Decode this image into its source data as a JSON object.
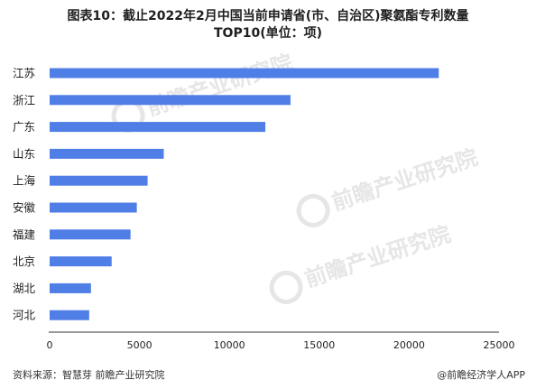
{
  "title_line1": "图表10：截止2022年2月中国当前申请省(市、自治区)聚氨酯专利数量",
  "title_line2": "TOP10(单位：项)",
  "source": "资料来源：智慧芽 前瞻产业研究院",
  "credit": "@前瞻经济学人APP",
  "watermark": "前瞻产业研究院",
  "colors": {
    "bar": "#4f7ee6",
    "axis": "#333333",
    "watermark": "#e6e6e6"
  },
  "chart_data": {
    "type": "bar",
    "orientation": "horizontal",
    "categories": [
      "江苏",
      "浙江",
      "广东",
      "山东",
      "上海",
      "安徽",
      "福建",
      "北京",
      "湖北",
      "河北"
    ],
    "values": [
      21650,
      13400,
      12000,
      6350,
      5450,
      4850,
      4500,
      3450,
      2300,
      2200
    ],
    "xlim": [
      0,
      25000
    ],
    "xticks": [
      "0",
      "5000",
      "10000",
      "15000",
      "20000",
      "25000"
    ],
    "grid": false,
    "legend": "none"
  }
}
